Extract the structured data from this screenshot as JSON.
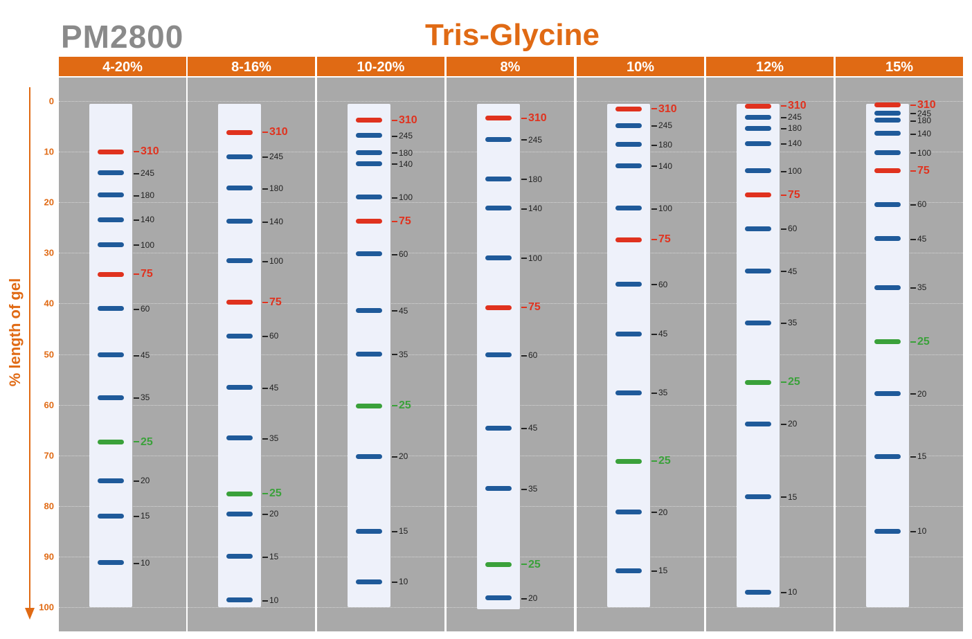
{
  "product_code": "PM2800",
  "title": "Tris-Glycine",
  "y_axis": {
    "label": "% length of gel",
    "ticks": [
      0,
      10,
      20,
      30,
      40,
      50,
      60,
      70,
      80,
      90,
      100
    ]
  },
  "colors": {
    "accent": "#e06a14",
    "panel_bg": "#a9a9a9",
    "lane_bg": "#eef1fa",
    "band_blue": "#1f5a9a",
    "band_red": "#e0321e",
    "band_green": "#3aa13a"
  },
  "gels": [
    {
      "label": "4-20%",
      "lane_top": 0.5,
      "lane_bottom": 100,
      "bands": [
        {
          "kda": "310",
          "pos": 10,
          "color": "red"
        },
        {
          "kda": "245",
          "pos": 14.2,
          "color": "blue"
        },
        {
          "kda": "180",
          "pos": 18.6,
          "color": "blue"
        },
        {
          "kda": "140",
          "pos": 23.4,
          "color": "blue"
        },
        {
          "kda": "100",
          "pos": 28.4,
          "color": "blue"
        },
        {
          "kda": "75",
          "pos": 34.2,
          "color": "red"
        },
        {
          "kda": "60",
          "pos": 41,
          "color": "blue"
        },
        {
          "kda": "45",
          "pos": 50.2,
          "color": "blue"
        },
        {
          "kda": "35",
          "pos": 58.6,
          "color": "blue"
        },
        {
          "kda": "25",
          "pos": 67.4,
          "color": "green"
        },
        {
          "kda": "20",
          "pos": 75,
          "color": "blue"
        },
        {
          "kda": "15",
          "pos": 82,
          "color": "blue"
        },
        {
          "kda": "10",
          "pos": 91.2,
          "color": "blue"
        }
      ]
    },
    {
      "label": "8-16%",
      "lane_top": 0.5,
      "lane_bottom": 100,
      "bands": [
        {
          "kda": "310",
          "pos": 6.2,
          "color": "red"
        },
        {
          "kda": "245",
          "pos": 11,
          "color": "blue"
        },
        {
          "kda": "180",
          "pos": 17.2,
          "color": "blue"
        },
        {
          "kda": "140",
          "pos": 23.8,
          "color": "blue"
        },
        {
          "kda": "100",
          "pos": 31.6,
          "color": "blue"
        },
        {
          "kda": "75",
          "pos": 39.8,
          "color": "red"
        },
        {
          "kda": "60",
          "pos": 46.4,
          "color": "blue"
        },
        {
          "kda": "45",
          "pos": 56.6,
          "color": "blue"
        },
        {
          "kda": "35",
          "pos": 66.6,
          "color": "blue"
        },
        {
          "kda": "25",
          "pos": 77.6,
          "color": "green"
        },
        {
          "kda": "20",
          "pos": 81.6,
          "color": "blue"
        },
        {
          "kda": "15",
          "pos": 90,
          "color": "blue"
        },
        {
          "kda": "10",
          "pos": 98.6,
          "color": "blue"
        }
      ]
    },
    {
      "label": "10-20%",
      "lane_top": 0.5,
      "lane_bottom": 100,
      "bands": [
        {
          "kda": "310",
          "pos": 3.8,
          "color": "red"
        },
        {
          "kda": "245",
          "pos": 6.8,
          "color": "blue"
        },
        {
          "kda": "180",
          "pos": 10.2,
          "color": "blue"
        },
        {
          "kda": "140",
          "pos": 12.4,
          "color": "blue"
        },
        {
          "kda": "100",
          "pos": 19,
          "color": "blue"
        },
        {
          "kda": "75",
          "pos": 23.8,
          "color": "red"
        },
        {
          "kda": "60",
          "pos": 30.2,
          "color": "blue"
        },
        {
          "kda": "45",
          "pos": 41.4,
          "color": "blue"
        },
        {
          "kda": "35",
          "pos": 50,
          "color": "blue"
        },
        {
          "kda": "25",
          "pos": 60.2,
          "color": "green"
        },
        {
          "kda": "20",
          "pos": 70.2,
          "color": "blue"
        },
        {
          "kda": "15",
          "pos": 85,
          "color": "blue"
        },
        {
          "kda": "10",
          "pos": 95,
          "color": "blue"
        }
      ]
    },
    {
      "label": "8%",
      "lane_top": 0.5,
      "lane_bottom": 100.4,
      "bands": [
        {
          "kda": "310",
          "pos": 3.4,
          "color": "red"
        },
        {
          "kda": "245",
          "pos": 7.6,
          "color": "blue"
        },
        {
          "kda": "180",
          "pos": 15.4,
          "color": "blue"
        },
        {
          "kda": "140",
          "pos": 21.2,
          "color": "blue"
        },
        {
          "kda": "100",
          "pos": 31,
          "color": "blue"
        },
        {
          "kda": "75",
          "pos": 40.8,
          "color": "red"
        },
        {
          "kda": "60",
          "pos": 50.2,
          "color": "blue"
        },
        {
          "kda": "45",
          "pos": 64.6,
          "color": "blue"
        },
        {
          "kda": "35",
          "pos": 76.6,
          "color": "blue"
        },
        {
          "kda": "25",
          "pos": 91.6,
          "color": "green"
        },
        {
          "kda": "20",
          "pos": 98.2,
          "color": "blue"
        }
      ]
    },
    {
      "label": "10%",
      "lane_top": 0.5,
      "lane_bottom": 100,
      "bands": [
        {
          "kda": "310",
          "pos": 1.6,
          "color": "red"
        },
        {
          "kda": "245",
          "pos": 4.8,
          "color": "blue"
        },
        {
          "kda": "180",
          "pos": 8.6,
          "color": "blue"
        },
        {
          "kda": "140",
          "pos": 12.8,
          "color": "blue"
        },
        {
          "kda": "100",
          "pos": 21.2,
          "color": "blue"
        },
        {
          "kda": "75",
          "pos": 27.4,
          "color": "red"
        },
        {
          "kda": "60",
          "pos": 36.2,
          "color": "blue"
        },
        {
          "kda": "45",
          "pos": 46,
          "color": "blue"
        },
        {
          "kda": "35",
          "pos": 57.6,
          "color": "blue"
        },
        {
          "kda": "25",
          "pos": 71.2,
          "color": "green"
        },
        {
          "kda": "20",
          "pos": 81.2,
          "color": "blue"
        },
        {
          "kda": "15",
          "pos": 92.8,
          "color": "blue"
        }
      ]
    },
    {
      "label": "12%",
      "lane_top": 0.5,
      "lane_bottom": 100,
      "bands": [
        {
          "kda": "310",
          "pos": 1.0,
          "color": "red"
        },
        {
          "kda": "245",
          "pos": 3.2,
          "color": "blue"
        },
        {
          "kda": "180",
          "pos": 5.4,
          "color": "blue"
        },
        {
          "kda": "140",
          "pos": 8.4,
          "color": "blue"
        },
        {
          "kda": "100",
          "pos": 13.8,
          "color": "blue"
        },
        {
          "kda": "75",
          "pos": 18.6,
          "color": "red"
        },
        {
          "kda": "60",
          "pos": 25.2,
          "color": "blue"
        },
        {
          "kda": "45",
          "pos": 33.6,
          "color": "blue"
        },
        {
          "kda": "35",
          "pos": 43.8,
          "color": "blue"
        },
        {
          "kda": "25",
          "pos": 55.6,
          "color": "green"
        },
        {
          "kda": "20",
          "pos": 63.8,
          "color": "blue"
        },
        {
          "kda": "15",
          "pos": 78.2,
          "color": "blue"
        },
        {
          "kda": "10",
          "pos": 97,
          "color": "blue"
        }
      ]
    },
    {
      "label": "15%",
      "lane_top": 0.5,
      "lane_bottom": 100,
      "bands": [
        {
          "kda": "310",
          "pos": 0.8,
          "color": "red"
        },
        {
          "kda": "245",
          "pos": 2.4,
          "color": "blue"
        },
        {
          "kda": "180",
          "pos": 3.8,
          "color": "blue"
        },
        {
          "kda": "140",
          "pos": 6.4,
          "color": "blue"
        },
        {
          "kda": "100",
          "pos": 10.2,
          "color": "blue"
        },
        {
          "kda": "75",
          "pos": 13.8,
          "color": "red"
        },
        {
          "kda": "60",
          "pos": 20.4,
          "color": "blue"
        },
        {
          "kda": "45",
          "pos": 27.2,
          "color": "blue"
        },
        {
          "kda": "35",
          "pos": 36.8,
          "color": "blue"
        },
        {
          "kda": "25",
          "pos": 47.6,
          "color": "green"
        },
        {
          "kda": "20",
          "pos": 57.8,
          "color": "blue"
        },
        {
          "kda": "15",
          "pos": 70.2,
          "color": "blue"
        },
        {
          "kda": "10",
          "pos": 85,
          "color": "blue"
        }
      ]
    }
  ]
}
